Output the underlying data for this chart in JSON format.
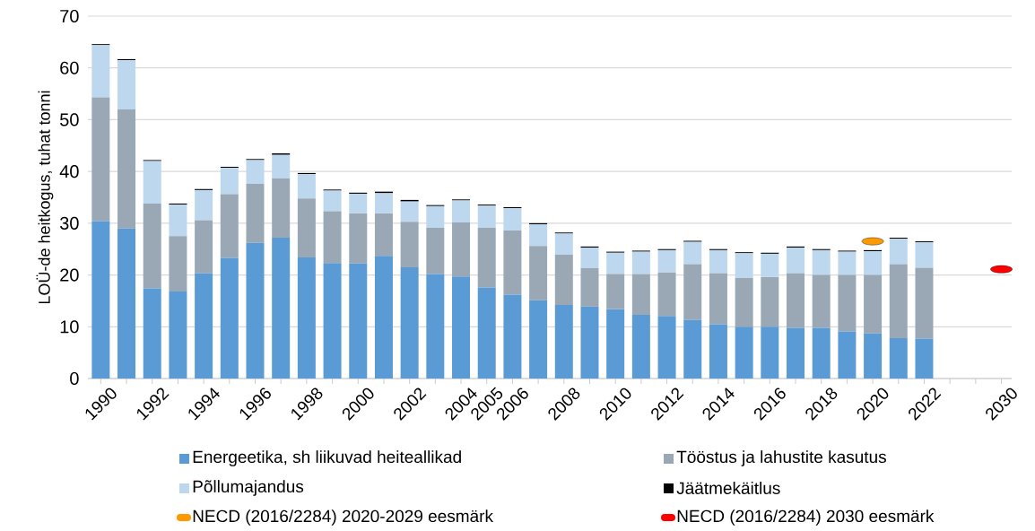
{
  "chart_data": {
    "type": "bar",
    "stacked": true,
    "ylabel": "LOÜ-de heitkogus, tuhat tonni",
    "categories": [
      "1990",
      null,
      "1992",
      null,
      "1994",
      null,
      "1996",
      null,
      "1998",
      null,
      "2000",
      null,
      "2002",
      null,
      "2004",
      "2005",
      "2006",
      null,
      "2008",
      null,
      "2010",
      null,
      "2012",
      null,
      "2014",
      null,
      "2016",
      null,
      "2018",
      null,
      "2020",
      null,
      "2022",
      null,
      null,
      "2030"
    ],
    "ylim": [
      0,
      70
    ],
    "yticks": [
      0,
      10,
      20,
      30,
      40,
      50,
      60,
      70
    ],
    "grid": "y",
    "legend": "bottom",
    "series": [
      {
        "name": "Energeetika, sh liikuvad heiteallikad",
        "color": "#5b9bd5",
        "values": [
          30.4,
          29.0,
          17.4,
          16.8,
          20.3,
          23.3,
          26.2,
          27.2,
          23.4,
          22.3,
          22.2,
          23.7,
          21.5,
          20.2,
          19.7,
          17.6,
          16.2,
          15.1,
          14.2,
          13.9,
          13.4,
          12.3,
          12.1,
          11.3,
          10.5,
          10.0,
          10.0,
          9.8,
          9.8,
          9.1,
          8.7,
          7.8,
          7.7,
          null,
          null,
          null
        ]
      },
      {
        "name": "Tööstus ja lahustite kasutus",
        "color": "#9aa8b5",
        "values": [
          23.9,
          23.0,
          16.4,
          10.7,
          10.3,
          12.3,
          11.4,
          11.5,
          11.4,
          10.0,
          9.7,
          8.2,
          8.8,
          8.9,
          10.5,
          11.5,
          12.4,
          10.5,
          9.7,
          7.4,
          6.8,
          7.9,
          8.4,
          10.8,
          9.8,
          9.4,
          9.6,
          10.5,
          10.2,
          10.9,
          11.3,
          14.3,
          13.7,
          null,
          null,
          null
        ]
      },
      {
        "name": "Põllumajandus",
        "color": "#bdd7ee",
        "values": [
          10.1,
          9.5,
          8.2,
          6.1,
          5.8,
          5.1,
          4.6,
          4.5,
          4.7,
          4.0,
          3.8,
          3.9,
          3.9,
          4.2,
          4.2,
          4.3,
          4.3,
          4.2,
          4.1,
          4.0,
          4.1,
          4.3,
          4.3,
          4.3,
          4.5,
          4.8,
          4.5,
          5.0,
          4.8,
          4.5,
          4.6,
          4.9,
          4.9,
          null,
          null,
          null
        ]
      },
      {
        "name": "Jäätmekäitlus",
        "color": "#000000",
        "values": [
          0.2,
          0.2,
          0.2,
          0.2,
          0.2,
          0.2,
          0.2,
          0.3,
          0.2,
          0.2,
          0.2,
          0.3,
          0.3,
          0.2,
          0.2,
          0.2,
          0.2,
          0.2,
          0.2,
          0.2,
          0.2,
          0.2,
          0.2,
          0.2,
          0.2,
          0.2,
          0.2,
          0.2,
          0.2,
          0.2,
          0.2,
          0.2,
          0.2,
          null,
          null,
          null
        ]
      },
      {
        "name": "NECD (2016/2284) 2020-2029 eesmärk",
        "type": "scatter",
        "color": "#ff9900",
        "values": [
          null,
          null,
          null,
          null,
          null,
          null,
          null,
          null,
          null,
          null,
          null,
          null,
          null,
          null,
          null,
          null,
          null,
          null,
          null,
          null,
          null,
          null,
          null,
          null,
          null,
          null,
          null,
          null,
          null,
          null,
          26.5,
          null,
          null,
          null,
          null,
          null
        ]
      },
      {
        "name": "NECD (2016/2284) 2030 eesmärk",
        "type": "scatter",
        "color": "#ff0000",
        "values": [
          null,
          null,
          null,
          null,
          null,
          null,
          null,
          null,
          null,
          null,
          null,
          null,
          null,
          null,
          null,
          null,
          null,
          null,
          null,
          null,
          null,
          null,
          null,
          null,
          null,
          null,
          null,
          null,
          null,
          null,
          null,
          null,
          null,
          null,
          null,
          21.1
        ]
      }
    ]
  }
}
